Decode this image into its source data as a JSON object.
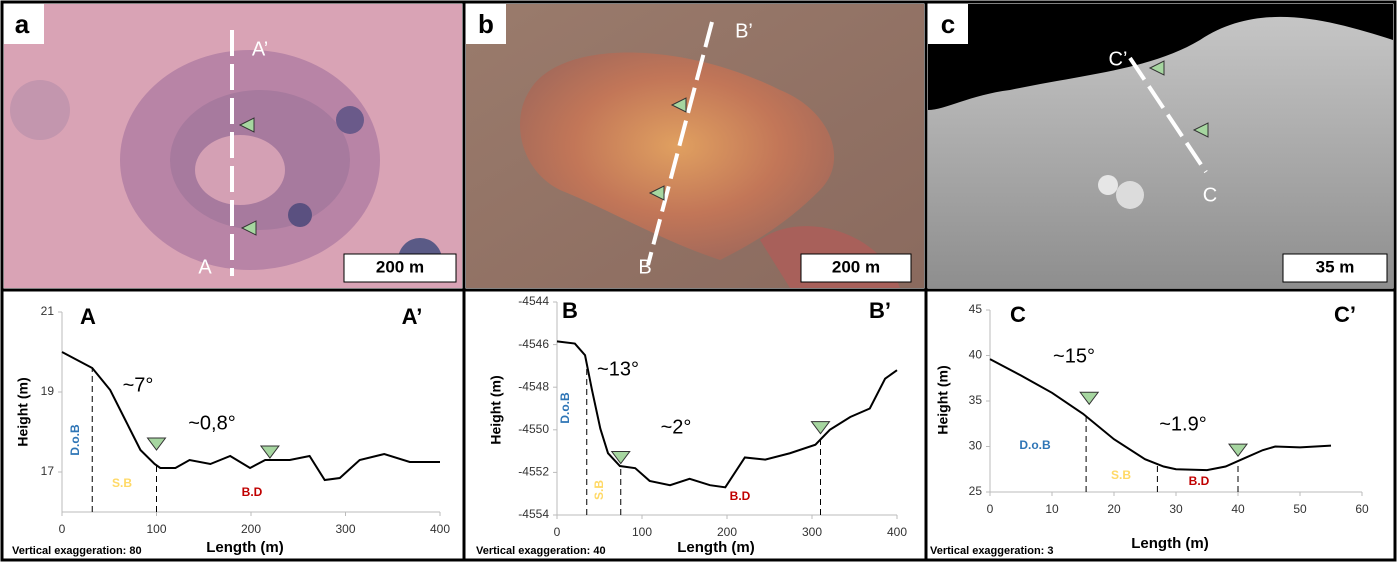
{
  "panels": [
    {
      "letter": "a",
      "start": "A",
      "end": "A’",
      "scale": "200 m"
    },
    {
      "letter": "b",
      "start": "B",
      "end": "B’",
      "scale": "200 m"
    },
    {
      "letter": "c",
      "start": "C",
      "end": "C’",
      "scale": "35 m"
    }
  ],
  "chart_data": [
    {
      "type": "line",
      "start_label": "A",
      "end_label": "A’",
      "xlabel": "Length (m)",
      "ylabel": "Height (m)",
      "note": "Vertical exaggeration: 80",
      "xlim": [
        0,
        400
      ],
      "xticks": [
        0,
        100,
        200,
        300,
        400
      ],
      "ylim": [
        16,
        21
      ],
      "yticks": [
        17,
        19,
        21
      ],
      "color": "#000000",
      "x": [
        0,
        32,
        51,
        67,
        83,
        98,
        104,
        120,
        135,
        157,
        178,
        199,
        215,
        241,
        262,
        278,
        294,
        315,
        341,
        368,
        400
      ],
      "values": [
        20.0,
        19.6,
        19.05,
        18.3,
        17.55,
        17.2,
        17.1,
        17.1,
        17.3,
        17.2,
        17.4,
        17.1,
        17.3,
        17.3,
        17.4,
        16.8,
        16.85,
        17.3,
        17.45,
        17.25,
        17.25
      ],
      "annotations": [
        {
          "text": "~7°",
          "color": "#000000"
        },
        {
          "text": "~0,8°",
          "color": "#000000"
        },
        {
          "text": "D.o.B",
          "color": "#2e75b6"
        },
        {
          "text": "S.B",
          "color": "#ffd966"
        },
        {
          "text": "B.D",
          "color": "#c00000"
        }
      ],
      "markers": {
        "x": [
          100,
          220
        ],
        "y": [
          17.7,
          17.5
        ]
      },
      "guides_x": [
        32,
        100
      ]
    },
    {
      "type": "line",
      "start_label": "B",
      "end_label": "B’",
      "xlabel": "Length (m)",
      "ylabel": "Height (m)",
      "note": "Vertical exaggeration: 40",
      "xlim": [
        0,
        400
      ],
      "xticks": [
        0,
        100,
        200,
        300,
        400
      ],
      "ylim": [
        -4554,
        -4544
      ],
      "yticks": [
        -4544,
        -4546,
        -4548,
        -4550,
        -4552,
        -4554
      ],
      "color": "#000000",
      "x": [
        0,
        21,
        33,
        41,
        51,
        60,
        74,
        92,
        109,
        133,
        156,
        180,
        198,
        221,
        245,
        274,
        304,
        321,
        345,
        368,
        386,
        400
      ],
      "values": [
        -4545.85,
        -4545.95,
        -4546.5,
        -4548.1,
        -4549.95,
        -4551.1,
        -4551.7,
        -4551.8,
        -4552.4,
        -4552.6,
        -4552.3,
        -4552.6,
        -4552.7,
        -4551.3,
        -4551.4,
        -4551.1,
        -4550.7,
        -4550.0,
        -4549.4,
        -4549.0,
        -4547.6,
        -4547.2
      ],
      "annotations": [
        {
          "text": "~13°",
          "color": "#000000"
        },
        {
          "text": "~2°",
          "color": "#000000"
        },
        {
          "text": "D.o.B",
          "color": "#2e75b6"
        },
        {
          "text": "S.B",
          "color": "#ffd966"
        },
        {
          "text": "B.D",
          "color": "#c00000"
        }
      ],
      "markers": {
        "x": [
          75,
          310
        ],
        "y": [
          -4551.3,
          -4549.9
        ]
      },
      "guides_x": [
        35,
        75,
        310
      ]
    },
    {
      "type": "line",
      "start_label": "C",
      "end_label": "C’",
      "xlabel": "Length (m)",
      "ylabel": "Height (m)",
      "note": "Vertical exaggeration: 3",
      "xlim": [
        0,
        60
      ],
      "xticks": [
        0,
        10,
        20,
        30,
        40,
        50,
        60
      ],
      "ylim": [
        25,
        45
      ],
      "yticks": [
        25,
        30,
        35,
        40,
        45
      ],
      "color": "#000000",
      "x": [
        0,
        5,
        10,
        15,
        20,
        25,
        28,
        30,
        35,
        38,
        41,
        44,
        46,
        50,
        55
      ],
      "values": [
        39.6,
        37.8,
        35.9,
        33.6,
        30.8,
        28.6,
        27.8,
        27.5,
        27.4,
        27.8,
        28.7,
        29.6,
        30.0,
        29.9,
        30.1
      ],
      "annotations": [
        {
          "text": "~15°",
          "color": "#000000"
        },
        {
          "text": "~1.9°",
          "color": "#000000"
        },
        {
          "text": "D.o.B",
          "color": "#2e75b6"
        },
        {
          "text": "S.B",
          "color": "#ffd966"
        },
        {
          "text": "B.D",
          "color": "#c00000"
        }
      ],
      "markers": {
        "x": [
          16,
          40
        ],
        "y": [
          35.3,
          29.6
        ]
      },
      "guides_x": [
        15.5,
        27,
        40
      ]
    }
  ]
}
